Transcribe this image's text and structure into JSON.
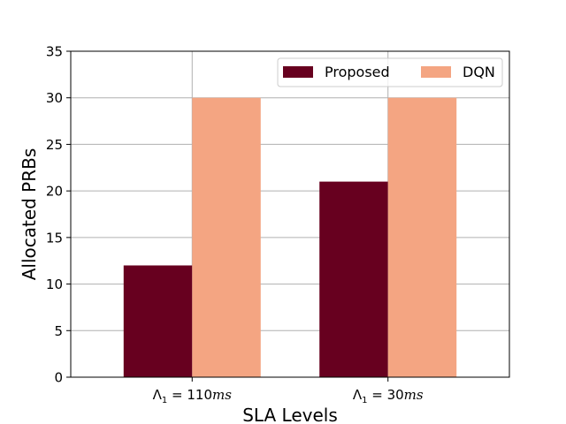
{
  "chart_data": {
    "type": "bar",
    "title": "",
    "xlabel": "SLA Levels",
    "ylabel": "Allocated PRBs",
    "ylim": [
      0,
      35
    ],
    "yticks": [
      0,
      5,
      10,
      15,
      20,
      25,
      30,
      35
    ],
    "grid": true,
    "legend_position": "top-right",
    "categories": [
      {
        "base": "Λ",
        "sub": "1",
        "rest": " = 110",
        "unit": "ms"
      },
      {
        "base": "Λ",
        "sub": "1",
        "rest": " = 30",
        "unit": "ms"
      }
    ],
    "series": [
      {
        "name": "Proposed",
        "color": "#67001f",
        "values": [
          12,
          21
        ]
      },
      {
        "name": "DQN",
        "color": "#f4a582",
        "values": [
          30,
          30
        ]
      }
    ]
  }
}
